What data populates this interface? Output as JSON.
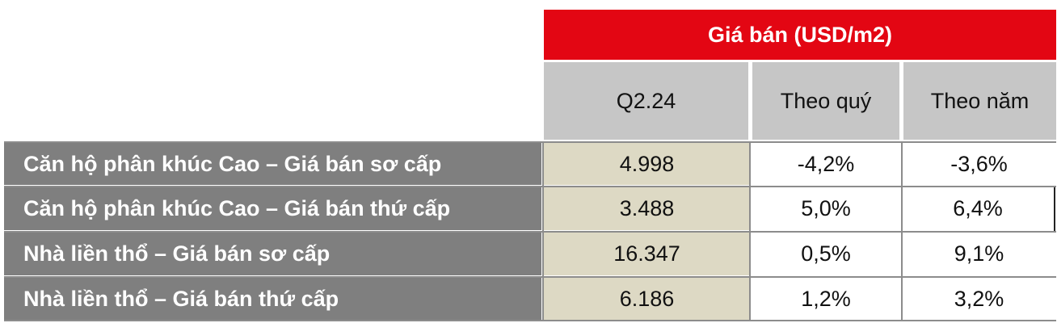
{
  "table": {
    "group_header": "Giá bán (USD/m2)",
    "columns": [
      "Q2.24",
      "Theo quý",
      "Theo năm"
    ],
    "rows": [
      {
        "label": "Căn hộ phân khúc Cao – Giá bán sơ cấp",
        "q": "4.998",
        "qoq": "-4,2%",
        "yoy": "-3,6%"
      },
      {
        "label": "Căn hộ phân khúc Cao – Giá bán thứ cấp",
        "q": "3.488",
        "qoq": "5,0%",
        "yoy": "6,4%"
      },
      {
        "label": "Nhà liền thổ – Giá bán sơ cấp",
        "q": "16.347",
        "qoq": "0,5%",
        "yoy": "9,1%"
      },
      {
        "label": "Nhà liền thổ – Giá bán thứ cấp",
        "q": "6.186",
        "qoq": "1,2%",
        "yoy": "3,2%"
      }
    ]
  },
  "colors": {
    "header_red": "#e30613",
    "column_header_gray": "#c6c6c6",
    "row_label_gray": "#7f7f7f",
    "q_column_beige": "#ddd9c4"
  }
}
